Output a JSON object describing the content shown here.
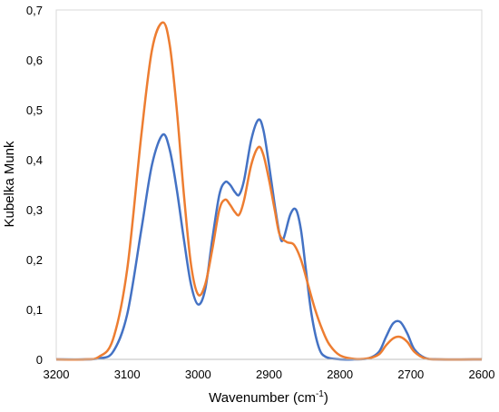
{
  "chart_data": {
    "type": "line",
    "title": "",
    "xlabel": "Wavenumber (cm",
    "xlabel_sup": "-1",
    "xlabel_end": ")",
    "ylabel": "Kubelka Munk",
    "xlim": [
      3200,
      2600
    ],
    "ylim": [
      0,
      0.7
    ],
    "x_ticks": [
      3200,
      3100,
      3000,
      2900,
      2800,
      2700,
      2600
    ],
    "x_tick_labels": [
      "3200",
      "3100",
      "3000",
      "2900",
      "2800",
      "2700",
      "2600"
    ],
    "y_ticks": [
      0,
      0.1,
      0.2,
      0.3,
      0.4,
      0.5,
      0.6,
      0.7
    ],
    "y_tick_labels": [
      "0",
      "0,1",
      "0,2",
      "0,3",
      "0,4",
      "0,5",
      "0,6",
      "0,7"
    ],
    "grid": false,
    "legend": "none",
    "series": [
      {
        "color": "#4472C4",
        "x": [
          3200,
          3160,
          3140,
          3120,
          3100,
          3080,
          3065,
          3050,
          3040,
          3030,
          3020,
          3010,
          3000,
          2990,
          2980,
          2970,
          2962,
          2955,
          2948,
          2942,
          2935,
          2925,
          2915,
          2908,
          2900,
          2892,
          2885,
          2880,
          2870,
          2862,
          2855,
          2848,
          2840,
          2830,
          2820,
          2800,
          2780,
          2760,
          2745,
          2735,
          2725,
          2715,
          2705,
          2695,
          2680,
          2660,
          2600
        ],
        "y": [
          0,
          0,
          0.002,
          0.015,
          0.09,
          0.26,
          0.39,
          0.45,
          0.42,
          0.34,
          0.24,
          0.15,
          0.11,
          0.14,
          0.24,
          0.33,
          0.355,
          0.35,
          0.335,
          0.33,
          0.36,
          0.44,
          0.48,
          0.46,
          0.39,
          0.31,
          0.25,
          0.24,
          0.29,
          0.3,
          0.26,
          0.18,
          0.09,
          0.025,
          0.005,
          0,
          0,
          0.002,
          0.015,
          0.045,
          0.072,
          0.075,
          0.052,
          0.02,
          0.003,
          0,
          0
        ]
      },
      {
        "color": "#ED7D31",
        "x": [
          3200,
          3160,
          3140,
          3120,
          3100,
          3080,
          3065,
          3050,
          3040,
          3030,
          3020,
          3010,
          3000,
          2990,
          2980,
          2970,
          2962,
          2955,
          2948,
          2942,
          2935,
          2925,
          2915,
          2908,
          2900,
          2892,
          2885,
          2875,
          2865,
          2855,
          2845,
          2835,
          2825,
          2815,
          2800,
          2780,
          2760,
          2745,
          2735,
          2725,
          2715,
          2705,
          2695,
          2680,
          2660,
          2600
        ],
        "y": [
          0,
          0,
          0.005,
          0.04,
          0.18,
          0.45,
          0.62,
          0.675,
          0.63,
          0.5,
          0.33,
          0.19,
          0.13,
          0.15,
          0.22,
          0.3,
          0.32,
          0.31,
          0.295,
          0.29,
          0.32,
          0.39,
          0.425,
          0.41,
          0.36,
          0.3,
          0.25,
          0.235,
          0.23,
          0.2,
          0.15,
          0.1,
          0.06,
          0.03,
          0.008,
          0.001,
          0.002,
          0.01,
          0.028,
          0.042,
          0.045,
          0.035,
          0.015,
          0.002,
          0,
          0
        ]
      }
    ]
  }
}
